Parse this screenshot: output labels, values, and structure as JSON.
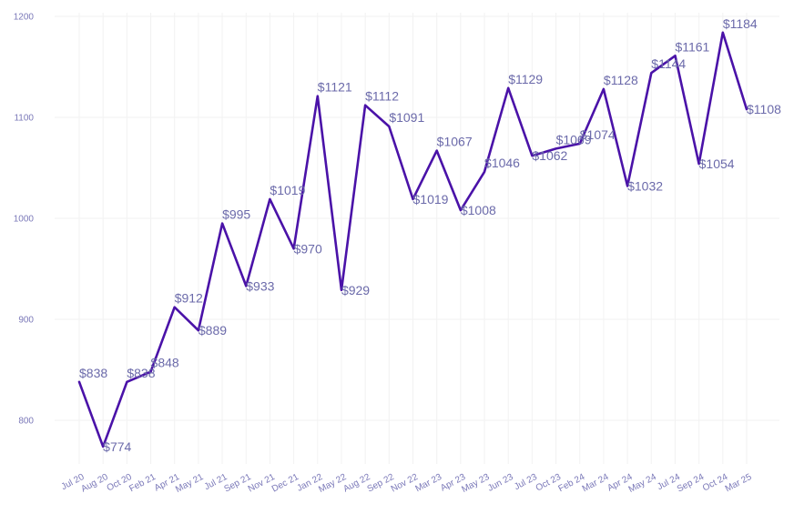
{
  "chart_data": {
    "type": "line",
    "title": "",
    "xlabel": "",
    "ylabel": "",
    "categories": [
      "Jul 20",
      "Aug 20",
      "Oct 20",
      "Feb 21",
      "Apr 21",
      "May 21",
      "Jul 21",
      "Sep 21",
      "Nov 21",
      "Dec 21",
      "Jan 22",
      "May 22",
      "Aug 22",
      "Sep 22",
      "Nov 22",
      "Mar 23",
      "Apr 23",
      "May 23",
      "Jun 23",
      "Jul 23",
      "Oct 23",
      "Feb 24",
      "Mar 24",
      "Apr 24",
      "May 24",
      "Jul 24",
      "Sep 24",
      "Oct 24",
      "Mar 25"
    ],
    "values": [
      838,
      774,
      838,
      848,
      912,
      889,
      995,
      933,
      1019,
      970,
      1121,
      929,
      1112,
      1091,
      1019,
      1067,
      1008,
      1046,
      1129,
      1062,
      1069,
      1074,
      1128,
      1032,
      1144,
      1161,
      1054,
      1184,
      1108
    ],
    "data_labels": [
      "$838",
      "$774",
      "$838",
      "$848",
      "$912",
      "$889",
      "$995",
      "$933",
      "$1019",
      "$970",
      "$1121",
      "$929",
      "$1112",
      "$1091",
      "$1019",
      "$1067",
      "$1008",
      "$1046",
      "$1129",
      "$1062",
      "$1069",
      "$1074",
      "$1128",
      "$1032",
      "$1144",
      "$1161",
      "$1054",
      "$1184",
      "$1108"
    ],
    "yticks": [
      800,
      900,
      1000,
      1100,
      1200
    ],
    "ylim": [
      750,
      1200
    ],
    "grid": true,
    "legend": "none",
    "colors": {
      "line": "#4a12a8",
      "label": "#6b6aaa",
      "tick": "#7a78b8",
      "grid": "#f2f2f2"
    }
  }
}
